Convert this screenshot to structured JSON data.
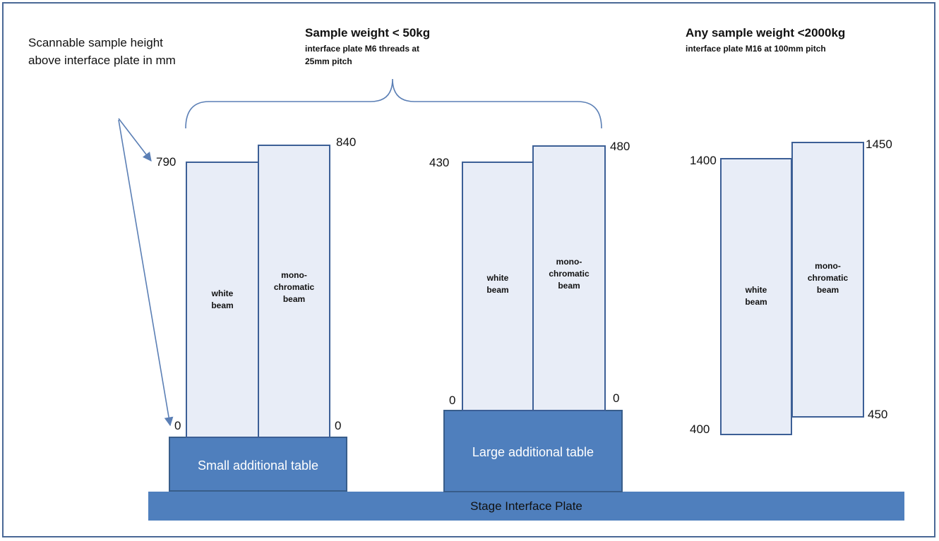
{
  "note": "Scannable sample height above interface plate in mm",
  "group_small": {
    "heading": "Sample weight < 50kg",
    "subheading": "interface plate M6 threads at 25mm pitch"
  },
  "group_any": {
    "heading": "Any sample weight <2000kg",
    "subheading": "interface plate M16 at 100mm pitch"
  },
  "beams": {
    "white": "white beam",
    "mono": "mono-chromatic beam"
  },
  "small_table": {
    "label": "Small additional table",
    "white_top": "790",
    "mono_top": "840",
    "white_bottom": "0",
    "mono_bottom": "0"
  },
  "large_table": {
    "label": "Large additional table",
    "white_top": "430",
    "mono_top": "480",
    "white_bottom": "0",
    "mono_bottom": "0"
  },
  "no_table": {
    "white_top": "1400",
    "mono_top": "1450",
    "white_bottom": "400",
    "mono_bottom": "450"
  },
  "stage_plate": "Stage Interface Plate",
  "colors": {
    "column_fill": "#e8edf7",
    "column_border": "#3c5f96",
    "table_fill": "#4f7fbd"
  }
}
